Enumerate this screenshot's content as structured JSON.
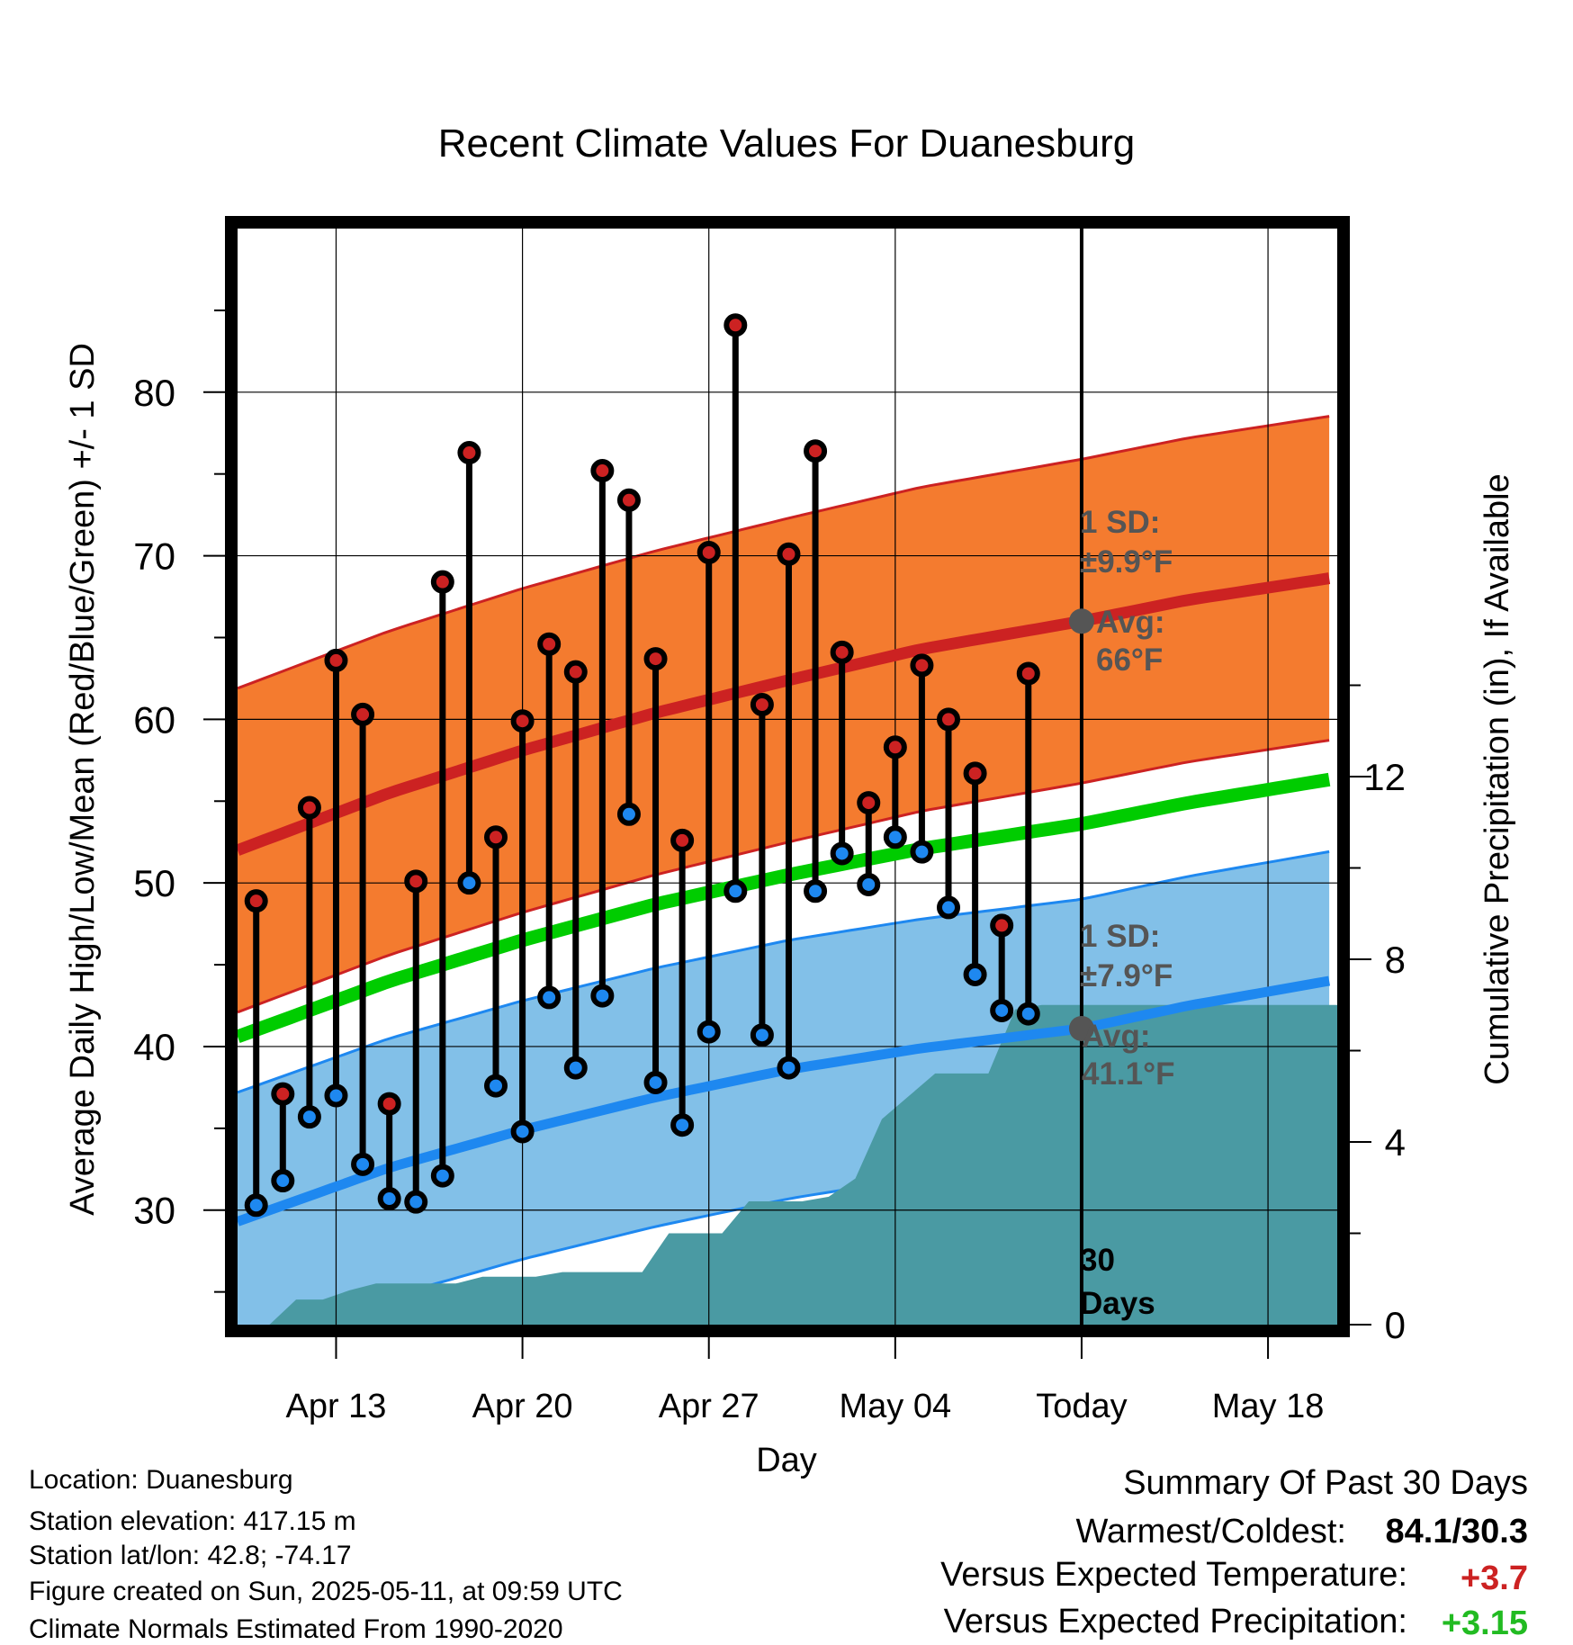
{
  "chart_data": {
    "type": "line",
    "title": "Recent Climate Values For Duanesburg",
    "xlabel": "Day",
    "ylabel": "Average Daily High/Low/Mean (Red/Blue/Green) +/- 1 SD",
    "y2label": "Cumulative Precipitation (in), If Available",
    "x_ticks": [
      {
        "day": 3,
        "label": "Apr 13"
      },
      {
        "day": 10,
        "label": "Apr 20"
      },
      {
        "day": 17,
        "label": "Apr 27"
      },
      {
        "day": 24,
        "label": "May 04"
      },
      {
        "day": 31,
        "label": "Today"
      },
      {
        "day": 38,
        "label": "May 18"
      }
    ],
    "xlim": [
      -0.7,
      40.6
    ],
    "ylim": [
      23,
      90
    ],
    "y_ticks": [
      30,
      40,
      50,
      60,
      70,
      80
    ],
    "y2lim": [
      0,
      24
    ],
    "y2_ticks": [
      0,
      4,
      8,
      12
    ],
    "today_day": 31,
    "today_label": [
      "30",
      "Days"
    ],
    "normals": {
      "x": [
        -0.7,
        5,
        10,
        15,
        20,
        25,
        31,
        35,
        40.6
      ],
      "high_mean": [
        52,
        55.5,
        58.1,
        60.4,
        62.4,
        64.3,
        66,
        67.3,
        68.7
      ],
      "high_sd": 9.9,
      "low_mean": [
        29.3,
        32.6,
        34.9,
        36.9,
        38.6,
        39.9,
        41.1,
        42.5,
        44.1
      ],
      "low_sd": 7.9,
      "mean": [
        40.6,
        44,
        46.5,
        48.7,
        50.5,
        52.1,
        53.6,
        54.9,
        56.4
      ]
    },
    "annotations": {
      "high_sd_label": [
        "1 SD:",
        "±9.9°F"
      ],
      "high_avg_label": [
        "Avg:",
        "66°F"
      ],
      "high_avg_value": 66,
      "low_sd_label": [
        "1 SD:",
        "±7.9°F"
      ],
      "low_avg_label": [
        "Avg:",
        "41.1°F"
      ],
      "low_avg_value": 41.1
    },
    "series": [
      {
        "day": 0,
        "high": 48.9,
        "low": 30.3
      },
      {
        "day": 1,
        "high": 37.1,
        "low": 31.8
      },
      {
        "day": 2,
        "high": 54.6,
        "low": 35.7
      },
      {
        "day": 3,
        "high": 63.6,
        "low": 37.0
      },
      {
        "day": 4,
        "high": 60.3,
        "low": 32.8
      },
      {
        "day": 5,
        "high": 36.5,
        "low": 30.7
      },
      {
        "day": 6,
        "high": 50.1,
        "low": 30.5
      },
      {
        "day": 7,
        "high": 68.4,
        "low": 32.1
      },
      {
        "day": 8,
        "high": 76.3,
        "low": 50.0
      },
      {
        "day": 9,
        "high": 52.8,
        "low": 37.6
      },
      {
        "day": 10,
        "high": 59.9,
        "low": 34.8
      },
      {
        "day": 11,
        "high": 64.6,
        "low": 43.0
      },
      {
        "day": 12,
        "high": 62.9,
        "low": 38.7
      },
      {
        "day": 13,
        "high": 75.2,
        "low": 43.1
      },
      {
        "day": 14,
        "high": 73.4,
        "low": 54.2
      },
      {
        "day": 15,
        "high": 63.7,
        "low": 37.8
      },
      {
        "day": 16,
        "high": 52.6,
        "low": 35.2
      },
      {
        "day": 17,
        "high": 70.2,
        "low": 40.9
      },
      {
        "day": 18,
        "high": 84.1,
        "low": 49.5
      },
      {
        "day": 19,
        "high": 60.9,
        "low": 40.7
      },
      {
        "day": 20,
        "high": 70.1,
        "low": 38.7
      },
      {
        "day": 21,
        "high": 76.4,
        "low": 49.5
      },
      {
        "day": 22,
        "high": 64.1,
        "low": 51.8
      },
      {
        "day": 23,
        "high": 54.9,
        "low": 49.9
      },
      {
        "day": 24,
        "high": 58.3,
        "low": 52.8
      },
      {
        "day": 25,
        "high": 63.3,
        "low": 51.9
      },
      {
        "day": 26,
        "high": 60.0,
        "low": 48.5
      },
      {
        "day": 27,
        "high": 56.7,
        "low": 44.4
      },
      {
        "day": 28,
        "high": 47.4,
        "low": 42.2
      },
      {
        "day": 29,
        "high": 62.8,
        "low": 42.0
      }
    ],
    "precipitation": {
      "x": [
        -0.7,
        0.5,
        1.5,
        2.5,
        3.5,
        4.5,
        5.5,
        6.5,
        7.5,
        8.5,
        9.5,
        10.5,
        11.5,
        12.5,
        13.5,
        14.5,
        15.5,
        16.5,
        17.5,
        18.5,
        19.5,
        20.5,
        21.5,
        22.5,
        23.5,
        24.5,
        25.5,
        26.5,
        27.5,
        28.5,
        29.5,
        30.5,
        40.6
      ],
      "cumulative": [
        0,
        0,
        0.55,
        0.55,
        0.75,
        0.9,
        0.9,
        0.9,
        0.9,
        1.05,
        1.05,
        1.05,
        1.15,
        1.15,
        1.15,
        1.15,
        2.0,
        2.0,
        2.0,
        2.7,
        2.7,
        2.7,
        2.8,
        3.2,
        4.5,
        5.0,
        5.5,
        5.5,
        5.5,
        6.9,
        7.0,
        7.0,
        7.0
      ]
    }
  },
  "info": {
    "location": "Location: Duanesburg",
    "elevation": "Station elevation: 417.15 m",
    "latlon": "Station lat/lon: 42.8; -74.17",
    "created": "Figure created on Sun, 2025-05-11, at 09:59 UTC",
    "normals_source": "Climate Normals Estimated From 1990-2020"
  },
  "summary": {
    "heading": "Summary Of Past 30 Days",
    "warmest_coldest_label": "Warmest/Coldest:",
    "warmest_coldest_value": "84.1/30.3",
    "temp_label": "Versus Expected Temperature:",
    "temp_value": "+3.7",
    "precip_label": "Versus Expected Precipitation:",
    "precip_value": "+3.15"
  },
  "colors": {
    "high_band": "#f47b2f",
    "high_line": "#cc2222",
    "low_band": "#82c0e8",
    "low_line": "#1e88f0",
    "mean_line": "#00cc00",
    "precip_fill": "#4a9aa3",
    "high_marker": "#cc2222",
    "low_marker": "#1e88f0",
    "annotation_text": "#555555",
    "temp_delta": "#cc2222",
    "precip_delta": "#22bb22"
  }
}
